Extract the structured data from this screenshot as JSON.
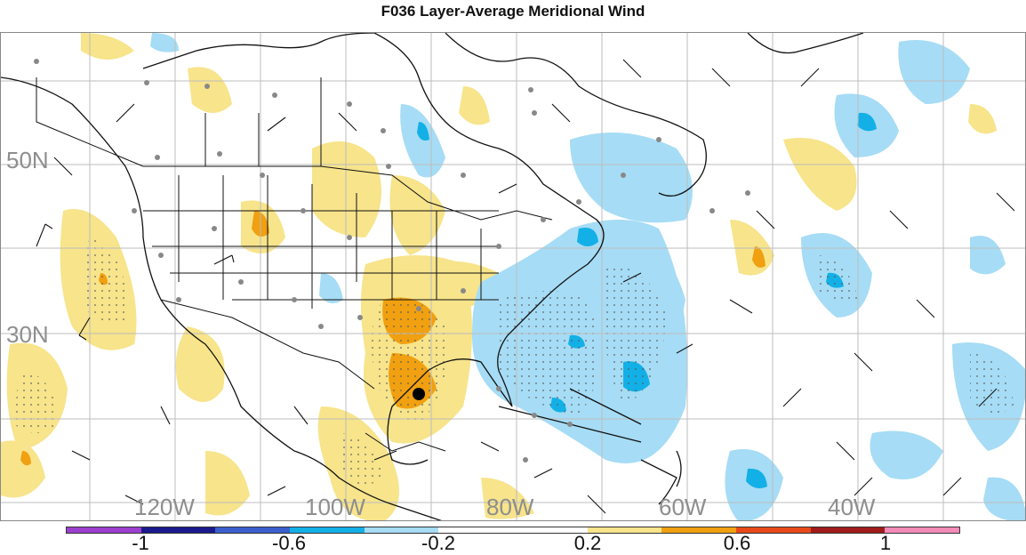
{
  "title": "F036 Layer-Average Meridional Wind",
  "map": {
    "lat_labels": [
      "50N",
      "30N"
    ],
    "lon_labels": [
      "120W",
      "100W",
      "80W",
      "60W",
      "40W"
    ]
  },
  "colorbar": {
    "colors": [
      "#9c3fcf",
      "#1a1a8c",
      "#3a5fcd",
      "#12b0e6",
      "#a6dcf5",
      "#ffffff",
      "#ffffff",
      "#f7e48b",
      "#f0a010",
      "#e8491a",
      "#a11b1b",
      "#f28bb8"
    ],
    "tick_labels": [
      "-1",
      "-0.6",
      "-0.2",
      "0.2",
      "0.6",
      "1"
    ]
  }
}
